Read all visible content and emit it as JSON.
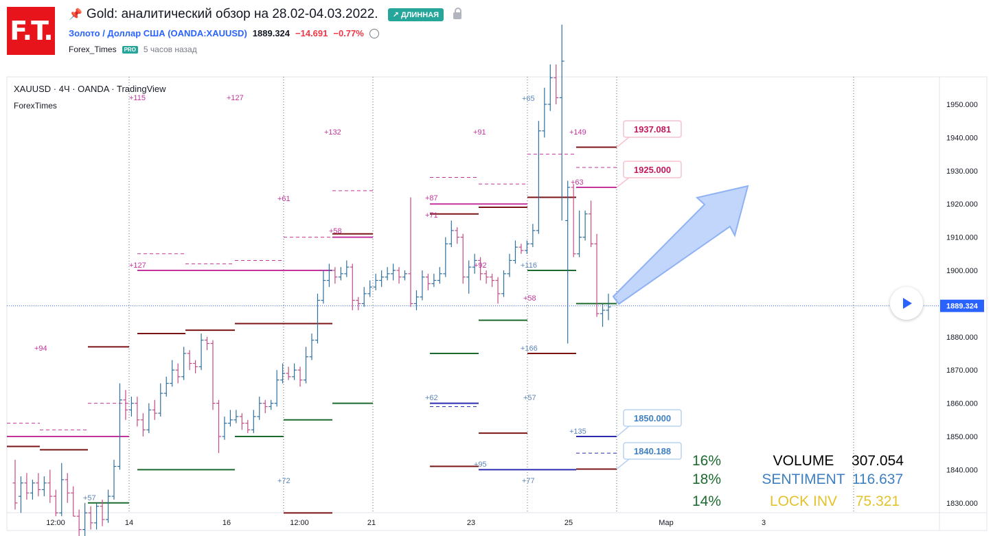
{
  "header": {
    "logo": "F.T.",
    "pin_icon": "pin-icon",
    "title": "Gold: аналитический обзор на 28.02-04.03.2022.",
    "badge": "↗ ДЛИННАЯ",
    "symbol": "Золото / Доллар США (OANDA:XAUUSD)",
    "price": "1889.324",
    "change": "−14.691",
    "change_pct": "−0.77%",
    "author": "Forex_Times",
    "pro": "PRO",
    "ago": "5 часов назад"
  },
  "chart_data": {
    "type": "ohlc",
    "title": "XAUUSD · 4Ч · OANDA · TradingView",
    "subtitle": "ForexTimes",
    "ylim": [
      1826,
      1963
    ],
    "yticks": [
      "1830.000",
      "1840.000",
      "1850.000",
      "1860.000",
      "1870.000",
      "1880.000",
      "1890.000",
      "1900.000",
      "1910.000",
      "1920.000",
      "1930.000",
      "1940.000",
      "1950.000"
    ],
    "xticks": [
      "12:00",
      "14",
      "16",
      "12:00",
      "21",
      "23",
      "25",
      "Мар",
      "3"
    ],
    "current_price": 1889.324,
    "current_price_label": "1889.324",
    "bars": [
      [
        1836,
        1830,
        1843,
        1828
      ],
      [
        1832,
        1836,
        1838,
        1827
      ],
      [
        1836,
        1833,
        1839,
        1831
      ],
      [
        1833,
        1836,
        1837,
        1831
      ],
      [
        1836,
        1834,
        1839,
        1832
      ],
      [
        1834,
        1836,
        1838,
        1832
      ],
      [
        1836,
        1832,
        1840,
        1830
      ],
      [
        1832,
        1827,
        1834,
        1826
      ],
      [
        1827,
        1837,
        1842,
        1826
      ],
      [
        1837,
        1833,
        1839,
        1830
      ],
      [
        1833,
        1826,
        1835,
        1826
      ],
      [
        1826,
        1822,
        1828,
        1819
      ],
      [
        1822,
        1827,
        1830,
        1820
      ],
      [
        1827,
        1824,
        1829,
        1822
      ],
      [
        1824,
        1829,
        1830,
        1822
      ],
      [
        1829,
        1825,
        1831,
        1823
      ],
      [
        1825,
        1832,
        1834,
        1824
      ],
      [
        1832,
        1841,
        1843,
        1831
      ],
      [
        1841,
        1861,
        1866,
        1840
      ],
      [
        1861,
        1858,
        1864,
        1855
      ],
      [
        1858,
        1860,
        1862,
        1856
      ],
      [
        1860,
        1855,
        1862,
        1853
      ],
      [
        1855,
        1852,
        1857,
        1850
      ],
      [
        1852,
        1858,
        1860,
        1851
      ],
      [
        1858,
        1857,
        1861,
        1855
      ],
      [
        1857,
        1863,
        1866,
        1856
      ],
      [
        1863,
        1866,
        1868,
        1862
      ],
      [
        1866,
        1870,
        1873,
        1865
      ],
      [
        1870,
        1868,
        1872,
        1866
      ],
      [
        1868,
        1875,
        1877,
        1867
      ],
      [
        1875,
        1872,
        1876,
        1870
      ],
      [
        1872,
        1871,
        1873,
        1869
      ],
      [
        1871,
        1879,
        1881,
        1870
      ],
      [
        1879,
        1878,
        1880,
        1876
      ],
      [
        1878,
        1860,
        1879,
        1858
      ],
      [
        1860,
        1850,
        1861,
        1845
      ],
      [
        1850,
        1854,
        1856,
        1849
      ],
      [
        1854,
        1855,
        1858,
        1853
      ],
      [
        1855,
        1856,
        1858,
        1854
      ],
      [
        1856,
        1854,
        1857,
        1852
      ],
      [
        1854,
        1852,
        1855,
        1851
      ],
      [
        1852,
        1856,
        1858,
        1851
      ],
      [
        1856,
        1860,
        1862,
        1855
      ],
      [
        1860,
        1859,
        1861,
        1857
      ],
      [
        1859,
        1860,
        1861,
        1858
      ],
      [
        1860,
        1867,
        1870,
        1859
      ],
      [
        1867,
        1869,
        1872,
        1866
      ],
      [
        1869,
        1868,
        1871,
        1867
      ],
      [
        1868,
        1870,
        1872,
        1867
      ],
      [
        1870,
        1867,
        1871,
        1865
      ],
      [
        1867,
        1874,
        1877,
        1866
      ],
      [
        1874,
        1879,
        1881,
        1873
      ],
      [
        1879,
        1891,
        1893,
        1878
      ],
      [
        1891,
        1897,
        1900,
        1890
      ],
      [
        1897,
        1900,
        1902,
        1895
      ],
      [
        1900,
        1898,
        1901,
        1896
      ],
      [
        1898,
        1899,
        1901,
        1897
      ],
      [
        1899,
        1901,
        1903,
        1898
      ],
      [
        1901,
        1891,
        1902,
        1888
      ],
      [
        1891,
        1890,
        1892,
        1888
      ],
      [
        1890,
        1893,
        1895,
        1889
      ],
      [
        1893,
        1895,
        1897,
        1892
      ],
      [
        1895,
        1897,
        1899,
        1894
      ],
      [
        1897,
        1898,
        1900,
        1895
      ],
      [
        1898,
        1899,
        1901,
        1897
      ],
      [
        1899,
        1900,
        1902,
        1897
      ],
      [
        1900,
        1898,
        1901,
        1896
      ],
      [
        1898,
        1899,
        1900,
        1897
      ],
      [
        1899,
        1890,
        1922,
        1889
      ],
      [
        1890,
        1892,
        1894,
        1888
      ],
      [
        1892,
        1898,
        1900,
        1891
      ],
      [
        1898,
        1896,
        1899,
        1894
      ],
      [
        1896,
        1897,
        1899,
        1895
      ],
      [
        1897,
        1899,
        1901,
        1896
      ],
      [
        1899,
        1908,
        1910,
        1898
      ],
      [
        1908,
        1912,
        1915,
        1907
      ],
      [
        1912,
        1910,
        1913,
        1908
      ],
      [
        1910,
        1898,
        1911,
        1896
      ],
      [
        1898,
        1901,
        1903,
        1893
      ],
      [
        1901,
        1903,
        1905,
        1899
      ],
      [
        1903,
        1899,
        1904,
        1897
      ],
      [
        1899,
        1898,
        1900,
        1896
      ],
      [
        1898,
        1897,
        1899,
        1895
      ],
      [
        1897,
        1893,
        1898,
        1890
      ],
      [
        1893,
        1899,
        1900,
        1892
      ],
      [
        1899,
        1903,
        1905,
        1898
      ],
      [
        1903,
        1907,
        1909,
        1902
      ],
      [
        1907,
        1906,
        1908,
        1905
      ],
      [
        1906,
        1908,
        1909,
        1905
      ],
      [
        1908,
        1912,
        1914,
        1907
      ],
      [
        1912,
        1942,
        1945,
        1911
      ],
      [
        1942,
        1950,
        1955,
        1940
      ],
      [
        1950,
        1958,
        1962,
        1948
      ],
      [
        1958,
        1952,
        1962,
        1950
      ],
      [
        1952,
        1963,
        1974,
        1915
      ],
      [
        1915,
        1925,
        1927,
        1878
      ],
      [
        1925,
        1905,
        1926,
        1904
      ],
      [
        1905,
        1910,
        1918,
        1904
      ],
      [
        1910,
        1917,
        1918,
        1909
      ],
      [
        1917,
        1908,
        1921,
        1907
      ],
      [
        1908,
        1887,
        1911,
        1886
      ],
      [
        1887,
        1888,
        1890,
        1883
      ],
      [
        1888,
        1889,
        1893,
        1885
      ]
    ],
    "levels": [
      {
        "label": "1937.081",
        "value": 1937.081,
        "kind": "pink"
      },
      {
        "label": "1925.000",
        "value": 1925.0,
        "kind": "pink"
      },
      {
        "label": "1850.000",
        "value": 1850.0,
        "kind": "blue"
      },
      {
        "label": "1840.188",
        "value": 1840.188,
        "kind": "blue"
      }
    ],
    "annotations": [
      "+115",
      "+127",
      "+132",
      "+91",
      "+65",
      "+149",
      "+63",
      "+61",
      "+58",
      "+87",
      "+71",
      "+127",
      "+92",
      "+116",
      "+58",
      "+94",
      "+166",
      "+62",
      "+57",
      "+135",
      "+57",
      "+95",
      "+72",
      "+77"
    ],
    "stats": [
      {
        "pct": "16%",
        "name": "VOLUME",
        "value": "307.054",
        "color": "#000000"
      },
      {
        "pct": "18%",
        "name": "SENTIMENT",
        "value": "116.637",
        "color": "#3d7fc1"
      },
      {
        "pct": "14%",
        "name": "LOCK INV",
        "value": "75.321",
        "color": "#e3c22e"
      }
    ],
    "pct_color": "#1b6a2e"
  }
}
